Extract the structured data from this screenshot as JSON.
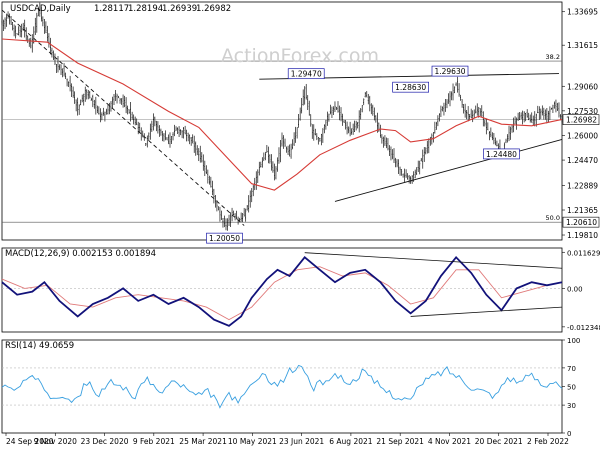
{
  "chart_data": {
    "type": "candlestick",
    "symbol_header": "USDCAD,Daily",
    "ohlc": [
      "1.28117",
      "1.28194",
      "1.26939",
      "1.26982"
    ],
    "watermark": "ActionForex.com",
    "current_price": "1.26982",
    "indicators": [
      "Moving averages"
    ],
    "x_ticks": [
      "24 Sep 2020",
      "9 Nov 2020",
      "23 Dec 2020",
      "9 Feb 2021",
      "25 Mar 2021",
      "10 May 2021",
      "23 Jun 2021",
      "6 Aug 2021",
      "21 Sep 2021",
      "4 Nov 2021",
      "20 Dec 2021",
      "2 Feb 2022"
    ],
    "price_panel": {
      "ylim": [
        1.195,
        1.343
      ],
      "y_ticks": [
        {
          "label": "1.33695",
          "value": 1.33695
        },
        {
          "label": "1.31615",
          "value": 1.31615
        },
        {
          "label": "1.29060",
          "value": 1.2906
        },
        {
          "label": "1.27530",
          "value": 1.2753
        },
        {
          "label": "1.26000",
          "value": 1.26
        },
        {
          "label": "1.24470",
          "value": 1.2447
        },
        {
          "label": "1.22889",
          "value": 1.22889
        },
        {
          "label": "1.21365",
          "value": 1.21365
        },
        {
          "label": "1.19810",
          "value": 1.1981
        }
      ],
      "horizontal_levels": [
        {
          "label": "38.2",
          "value": 1.3063
        },
        {
          "label": "50.0",
          "value": 1.2061
        }
      ],
      "level_boxes": [
        {
          "label": "1.20610",
          "value": 1.2061
        },
        {
          "label": "1.26982",
          "value": 1.26982
        }
      ],
      "annotations": [
        {
          "label": "1.20050",
          "date_index": 147,
          "value": 1.2005
        },
        {
          "label": "1.29470",
          "date_index": 201,
          "value": 1.2947
        },
        {
          "label": "1.28630",
          "date_index": 270,
          "value": 1.2863
        },
        {
          "label": "1.24480",
          "date_index": 330,
          "value": 1.2448
        },
        {
          "label": "1.29630",
          "date_index": 296,
          "value": 1.2963
        }
      ],
      "close_path": [
        {
          "i": 0,
          "v": 1.33
        },
        {
          "i": 4,
          "v": 1.334
        },
        {
          "i": 9,
          "v": 1.322
        },
        {
          "i": 14,
          "v": 1.327
        },
        {
          "i": 19,
          "v": 1.315
        },
        {
          "i": 24,
          "v": 1.339
        },
        {
          "i": 30,
          "v": 1.321
        },
        {
          "i": 35,
          "v": 1.305
        },
        {
          "i": 40,
          "v": 1.3
        },
        {
          "i": 45,
          "v": 1.291
        },
        {
          "i": 50,
          "v": 1.276
        },
        {
          "i": 55,
          "v": 1.288
        },
        {
          "i": 60,
          "v": 1.281
        },
        {
          "i": 65,
          "v": 1.272
        },
        {
          "i": 70,
          "v": 1.276
        },
        {
          "i": 75,
          "v": 1.286
        },
        {
          "i": 80,
          "v": 1.28
        },
        {
          "i": 85,
          "v": 1.273
        },
        {
          "i": 90,
          "v": 1.265
        },
        {
          "i": 95,
          "v": 1.255
        },
        {
          "i": 100,
          "v": 1.27
        },
        {
          "i": 105,
          "v": 1.262
        },
        {
          "i": 110,
          "v": 1.256
        },
        {
          "i": 115,
          "v": 1.264
        },
        {
          "i": 120,
          "v": 1.262
        },
        {
          "i": 125,
          "v": 1.257
        },
        {
          "i": 130,
          "v": 1.248
        },
        {
          "i": 135,
          "v": 1.237
        },
        {
          "i": 140,
          "v": 1.222
        },
        {
          "i": 145,
          "v": 1.208
        },
        {
          "i": 148,
          "v": 1.204
        },
        {
          "i": 152,
          "v": 1.212
        },
        {
          "i": 156,
          "v": 1.207
        },
        {
          "i": 160,
          "v": 1.21
        },
        {
          "i": 165,
          "v": 1.225
        },
        {
          "i": 170,
          "v": 1.24
        },
        {
          "i": 175,
          "v": 1.25
        },
        {
          "i": 180,
          "v": 1.235
        },
        {
          "i": 185,
          "v": 1.258
        },
        {
          "i": 190,
          "v": 1.248
        },
        {
          "i": 195,
          "v": 1.265
        },
        {
          "i": 200,
          "v": 1.289
        },
        {
          "i": 205,
          "v": 1.262
        },
        {
          "i": 210,
          "v": 1.258
        },
        {
          "i": 215,
          "v": 1.272
        },
        {
          "i": 220,
          "v": 1.278
        },
        {
          "i": 225,
          "v": 1.27
        },
        {
          "i": 230,
          "v": 1.261
        },
        {
          "i": 235,
          "v": 1.268
        },
        {
          "i": 240,
          "v": 1.286
        },
        {
          "i": 245,
          "v": 1.275
        },
        {
          "i": 250,
          "v": 1.26
        },
        {
          "i": 255,
          "v": 1.252
        },
        {
          "i": 260,
          "v": 1.243
        },
        {
          "i": 265,
          "v": 1.236
        },
        {
          "i": 270,
          "v": 1.233
        },
        {
          "i": 275,
          "v": 1.24
        },
        {
          "i": 280,
          "v": 1.252
        },
        {
          "i": 285,
          "v": 1.262
        },
        {
          "i": 290,
          "v": 1.276
        },
        {
          "i": 295,
          "v": 1.282
        },
        {
          "i": 300,
          "v": 1.292
        },
        {
          "i": 305,
          "v": 1.276
        },
        {
          "i": 310,
          "v": 1.271
        },
        {
          "i": 315,
          "v": 1.277
        },
        {
          "i": 320,
          "v": 1.265
        },
        {
          "i": 325,
          "v": 1.257
        },
        {
          "i": 330,
          "v": 1.249
        },
        {
          "i": 335,
          "v": 1.262
        },
        {
          "i": 340,
          "v": 1.27
        },
        {
          "i": 345,
          "v": 1.274
        },
        {
          "i": 350,
          "v": 1.268
        },
        {
          "i": 355,
          "v": 1.276
        },
        {
          "i": 360,
          "v": 1.272
        },
        {
          "i": 365,
          "v": 1.28
        },
        {
          "i": 370,
          "v": 1.27
        }
      ],
      "ma_line": [
        {
          "i": 0,
          "v": 1.32
        },
        {
          "i": 30,
          "v": 1.318
        },
        {
          "i": 50,
          "v": 1.305
        },
        {
          "i": 80,
          "v": 1.292
        },
        {
          "i": 110,
          "v": 1.275
        },
        {
          "i": 130,
          "v": 1.265
        },
        {
          "i": 150,
          "v": 1.245
        },
        {
          "i": 165,
          "v": 1.23
        },
        {
          "i": 180,
          "v": 1.226
        },
        {
          "i": 195,
          "v": 1.236
        },
        {
          "i": 210,
          "v": 1.248
        },
        {
          "i": 230,
          "v": 1.257
        },
        {
          "i": 250,
          "v": 1.264
        },
        {
          "i": 260,
          "v": 1.263
        },
        {
          "i": 270,
          "v": 1.256
        },
        {
          "i": 285,
          "v": 1.258
        },
        {
          "i": 300,
          "v": 1.266
        },
        {
          "i": 315,
          "v": 1.272
        },
        {
          "i": 330,
          "v": 1.267
        },
        {
          "i": 350,
          "v": 1.266
        },
        {
          "i": 370,
          "v": 1.27
        }
      ],
      "trendlines": [
        {
          "from": {
            "i": 0,
            "v": 1.338
          },
          "to": {
            "i": 160,
            "v": 1.204
          },
          "style": "dashed"
        },
        {
          "from": {
            "i": 170,
            "v": 1.295
          },
          "to": {
            "i": 368,
            "v": 1.2985
          },
          "style": "solid"
        },
        {
          "from": {
            "i": 220,
            "v": 1.219
          },
          "to": {
            "i": 370,
            "v": 1.2575
          },
          "style": "solid"
        }
      ]
    },
    "macd_panel": {
      "title": "MACD(12,26,9) 0.002153 0.001894",
      "ylim": [
        -0.014,
        0.013
      ],
      "y_ticks": [
        {
          "label": "0.011629",
          "value": 0.011629
        },
        {
          "label": "0.00",
          "value": 0.0
        },
        {
          "label": "-0.012348",
          "value": -0.012348
        }
      ],
      "macd_line": [
        {
          "i": 0,
          "v": 0.002
        },
        {
          "i": 10,
          "v": -0.002
        },
        {
          "i": 20,
          "v": -0.001
        },
        {
          "i": 28,
          "v": 0.002
        },
        {
          "i": 38,
          "v": -0.004
        },
        {
          "i": 50,
          "v": -0.009
        },
        {
          "i": 60,
          "v": -0.005
        },
        {
          "i": 70,
          "v": -0.003
        },
        {
          "i": 80,
          "v": 0.0
        },
        {
          "i": 90,
          "v": -0.004
        },
        {
          "i": 100,
          "v": -0.002
        },
        {
          "i": 110,
          "v": -0.005
        },
        {
          "i": 120,
          "v": -0.003
        },
        {
          "i": 130,
          "v": -0.006
        },
        {
          "i": 140,
          "v": -0.01
        },
        {
          "i": 150,
          "v": -0.012
        },
        {
          "i": 158,
          "v": -0.009
        },
        {
          "i": 165,
          "v": -0.003
        },
        {
          "i": 175,
          "v": 0.003
        },
        {
          "i": 182,
          "v": 0.006
        },
        {
          "i": 190,
          "v": 0.004
        },
        {
          "i": 200,
          "v": 0.01
        },
        {
          "i": 210,
          "v": 0.006
        },
        {
          "i": 220,
          "v": 0.002
        },
        {
          "i": 230,
          "v": 0.005
        },
        {
          "i": 240,
          "v": 0.006
        },
        {
          "i": 250,
          "v": 0.002
        },
        {
          "i": 260,
          "v": -0.004
        },
        {
          "i": 270,
          "v": -0.008
        },
        {
          "i": 280,
          "v": -0.004
        },
        {
          "i": 290,
          "v": 0.004
        },
        {
          "i": 300,
          "v": 0.01
        },
        {
          "i": 310,
          "v": 0.005
        },
        {
          "i": 320,
          "v": -0.002
        },
        {
          "i": 330,
          "v": -0.007
        },
        {
          "i": 340,
          "v": 0.0
        },
        {
          "i": 350,
          "v": 0.002
        },
        {
          "i": 360,
          "v": 0.001
        },
        {
          "i": 370,
          "v": 0.002
        }
      ],
      "signal_line": [
        {
          "i": 0,
          "v": 0.003
        },
        {
          "i": 15,
          "v": 0.0
        },
        {
          "i": 30,
          "v": 0.001
        },
        {
          "i": 45,
          "v": -0.005
        },
        {
          "i": 60,
          "v": -0.006
        },
        {
          "i": 75,
          "v": -0.003
        },
        {
          "i": 90,
          "v": -0.002
        },
        {
          "i": 105,
          "v": -0.003
        },
        {
          "i": 120,
          "v": -0.004
        },
        {
          "i": 135,
          "v": -0.006
        },
        {
          "i": 150,
          "v": -0.01
        },
        {
          "i": 165,
          "v": -0.006
        },
        {
          "i": 180,
          "v": 0.002
        },
        {
          "i": 195,
          "v": 0.006
        },
        {
          "i": 210,
          "v": 0.007
        },
        {
          "i": 225,
          "v": 0.004
        },
        {
          "i": 240,
          "v": 0.005
        },
        {
          "i": 255,
          "v": 0.001
        },
        {
          "i": 270,
          "v": -0.005
        },
        {
          "i": 285,
          "v": -0.003
        },
        {
          "i": 300,
          "v": 0.006
        },
        {
          "i": 315,
          "v": 0.006
        },
        {
          "i": 330,
          "v": -0.003
        },
        {
          "i": 345,
          "v": -0.001
        },
        {
          "i": 360,
          "v": 0.001
        },
        {
          "i": 370,
          "v": 0.002
        }
      ],
      "trendlines": [
        {
          "from": {
            "i": 200,
            "v": 0.0115
          },
          "to": {
            "i": 370,
            "v": 0.0065
          }
        },
        {
          "from": {
            "i": 270,
            "v": -0.009
          },
          "to": {
            "i": 370,
            "v": -0.006
          }
        }
      ]
    },
    "rsi_panel": {
      "title": "RSI(14) 49.0659",
      "ylim": [
        0,
        100
      ],
      "y_ticks": [
        {
          "label": "100",
          "value": 100
        },
        {
          "label": "70",
          "value": 70
        },
        {
          "label": "50",
          "value": 50
        },
        {
          "label": "30",
          "value": 30
        },
        {
          "label": "0",
          "value": 0
        }
      ],
      "rsi_line": [
        {
          "i": 0,
          "v": 52
        },
        {
          "i": 8,
          "v": 45
        },
        {
          "i": 16,
          "v": 56
        },
        {
          "i": 24,
          "v": 60
        },
        {
          "i": 32,
          "v": 40
        },
        {
          "i": 40,
          "v": 42
        },
        {
          "i": 48,
          "v": 33
        },
        {
          "i": 56,
          "v": 55
        },
        {
          "i": 64,
          "v": 40
        },
        {
          "i": 72,
          "v": 55
        },
        {
          "i": 80,
          "v": 50
        },
        {
          "i": 88,
          "v": 38
        },
        {
          "i": 96,
          "v": 60
        },
        {
          "i": 104,
          "v": 42
        },
        {
          "i": 112,
          "v": 55
        },
        {
          "i": 120,
          "v": 50
        },
        {
          "i": 128,
          "v": 38
        },
        {
          "i": 136,
          "v": 45
        },
        {
          "i": 144,
          "v": 30
        },
        {
          "i": 150,
          "v": 40
        },
        {
          "i": 158,
          "v": 35
        },
        {
          "i": 166,
          "v": 55
        },
        {
          "i": 174,
          "v": 62
        },
        {
          "i": 182,
          "v": 50
        },
        {
          "i": 190,
          "v": 66
        },
        {
          "i": 198,
          "v": 72
        },
        {
          "i": 206,
          "v": 48
        },
        {
          "i": 214,
          "v": 58
        },
        {
          "i": 222,
          "v": 62
        },
        {
          "i": 230,
          "v": 52
        },
        {
          "i": 238,
          "v": 66
        },
        {
          "i": 246,
          "v": 55
        },
        {
          "i": 254,
          "v": 45
        },
        {
          "i": 262,
          "v": 38
        },
        {
          "i": 270,
          "v": 35
        },
        {
          "i": 278,
          "v": 55
        },
        {
          "i": 286,
          "v": 62
        },
        {
          "i": 294,
          "v": 68
        },
        {
          "i": 302,
          "v": 60
        },
        {
          "i": 310,
          "v": 50
        },
        {
          "i": 318,
          "v": 45
        },
        {
          "i": 326,
          "v": 40
        },
        {
          "i": 334,
          "v": 60
        },
        {
          "i": 342,
          "v": 55
        },
        {
          "i": 350,
          "v": 62
        },
        {
          "i": 358,
          "v": 50
        },
        {
          "i": 365,
          "v": 58
        },
        {
          "i": 370,
          "v": 49
        }
      ]
    }
  }
}
